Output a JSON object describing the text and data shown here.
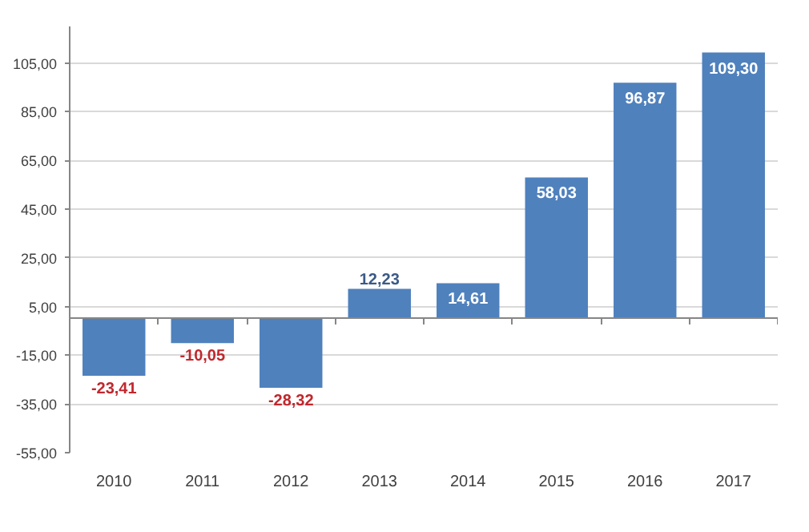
{
  "chart_data": {
    "type": "bar",
    "categories": [
      "2010",
      "2011",
      "2012",
      "2013",
      "2014",
      "2015",
      "2016",
      "2017"
    ],
    "values": [
      -23.41,
      -10.05,
      -28.32,
      12.23,
      14.61,
      58.03,
      96.87,
      109.3
    ],
    "color": "#4f81bd",
    "value_labels": [
      "-23,41",
      "-10,05",
      "-28,32",
      "12,23",
      "14,61",
      "58,03",
      "96,87",
      "109,30"
    ],
    "ylim": [
      -55,
      120
    ],
    "yticks": [
      {
        "value": -55,
        "label": "-55,00"
      },
      {
        "value": -35,
        "label": "-35,00"
      },
      {
        "value": -15,
        "label": "-15,00"
      },
      {
        "value": 5,
        "label": "5,00"
      },
      {
        "value": 25,
        "label": "25,00"
      },
      {
        "value": 45,
        "label": "45,00"
      },
      {
        "value": 65,
        "label": "65,00"
      },
      {
        "value": 85,
        "label": "85,00"
      },
      {
        "value": 105,
        "label": "105,00"
      }
    ],
    "grid": "y"
  }
}
